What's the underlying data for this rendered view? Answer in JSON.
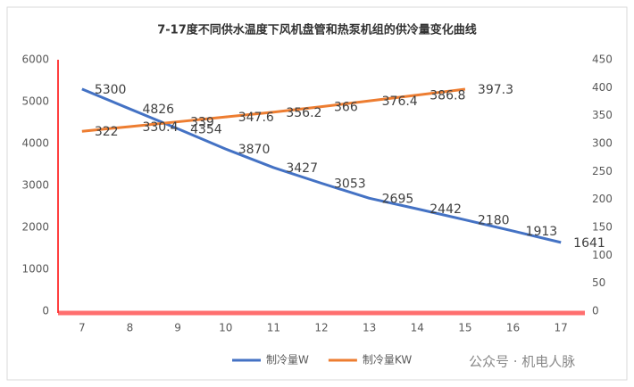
{
  "chart_data": {
    "type": "line",
    "title": "7-17度不同供水温度下风机盘管和热泵机组的供冷量变化曲线",
    "categories": [
      "7",
      "8",
      "9",
      "10",
      "11",
      "12",
      "13",
      "14",
      "15",
      "16",
      "17"
    ],
    "series": [
      {
        "name": "制冷量W",
        "color": "#4472c4",
        "values": [
          5300,
          4826,
          4354,
          3870,
          3427,
          3053,
          2695,
          2442,
          2180,
          1913,
          1641
        ]
      },
      {
        "name": "制冷量KW",
        "color": "#ed7d31",
        "axis": "y2",
        "values": [
          322,
          330.4,
          339,
          347.6,
          356.2,
          366,
          376.4,
          386.8,
          397.3,
          null,
          null
        ]
      }
    ],
    "ylim": [
      0,
      6000
    ],
    "yticks": [
      0,
      1000,
      2000,
      3000,
      4000,
      5000,
      6000
    ],
    "y2lim": [
      0,
      450
    ],
    "y2ticks": [
      0,
      50,
      100,
      150,
      200,
      250,
      300,
      350,
      400,
      450
    ],
    "grid": false,
    "legend": "bottom",
    "annotation": "公众号 · 机电人脉"
  }
}
